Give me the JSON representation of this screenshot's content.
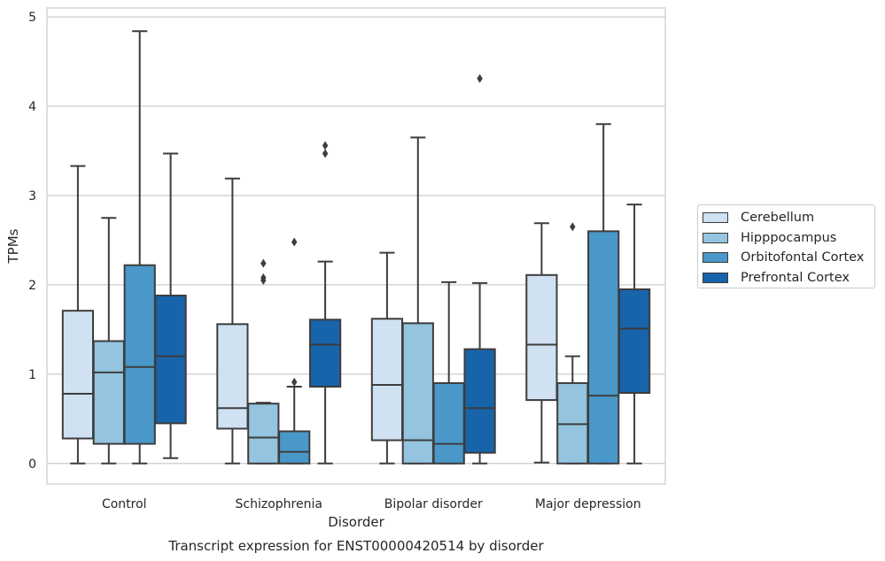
{
  "chart_data": {
    "type": "box",
    "title": "Transcript expression for ENST00000420514 by disorder",
    "xlabel": "Disorder",
    "ylabel": "TPMs",
    "ylim": [
      -0.23,
      5.1
    ],
    "yticks": [
      0,
      1,
      2,
      3,
      4,
      5
    ],
    "grid": "horizontal",
    "legend_position": "right",
    "categories": [
      "Control",
      "Schizophrenia",
      "Bipolar disorder",
      "Major depression"
    ],
    "series": [
      {
        "name": "Cerebellum",
        "color": "#d0e1f2",
        "boxes": [
          {
            "whislo": 0.0,
            "q1": 0.28,
            "median": 0.78,
            "q3": 1.71,
            "whishi": 3.33,
            "fliers": []
          },
          {
            "whislo": 0.0,
            "q1": 0.39,
            "median": 0.62,
            "q3": 1.56,
            "whishi": 3.19,
            "fliers": []
          },
          {
            "whislo": 0.0,
            "q1": 0.26,
            "median": 0.88,
            "q3": 1.62,
            "whishi": 2.36,
            "fliers": []
          },
          {
            "whislo": 0.01,
            "q1": 0.71,
            "median": 1.33,
            "q3": 2.11,
            "whishi": 2.69,
            "fliers": []
          }
        ]
      },
      {
        "name": "Hipppocampus",
        "color": "#94c4df",
        "boxes": [
          {
            "whislo": 0.0,
            "q1": 0.22,
            "median": 1.02,
            "q3": 1.37,
            "whishi": 2.75,
            "fliers": []
          },
          {
            "whislo": 0.0,
            "q1": 0.0,
            "median": 0.29,
            "q3": 0.67,
            "whishi": 0.68,
            "fliers": [
              2.24,
              2.08,
              2.05
            ]
          },
          {
            "whislo": 0.0,
            "q1": 0.0,
            "median": 0.26,
            "q3": 1.57,
            "whishi": 3.65,
            "fliers": []
          },
          {
            "whislo": 0.0,
            "q1": 0.0,
            "median": 0.44,
            "q3": 0.9,
            "whishi": 1.2,
            "fliers": [
              2.65
            ]
          }
        ]
      },
      {
        "name": "Orbitofontal Cortex",
        "color": "#4a98c9",
        "boxes": [
          {
            "whislo": 0.0,
            "q1": 0.22,
            "median": 1.08,
            "q3": 2.22,
            "whishi": 4.84,
            "fliers": []
          },
          {
            "whislo": 0.0,
            "q1": 0.0,
            "median": 0.13,
            "q3": 0.36,
            "whishi": 0.86,
            "fliers": [
              0.91,
              2.48
            ]
          },
          {
            "whislo": 0.0,
            "q1": 0.0,
            "median": 0.22,
            "q3": 0.9,
            "whishi": 2.03,
            "fliers": []
          },
          {
            "whislo": 0.0,
            "q1": 0.0,
            "median": 0.76,
            "q3": 2.6,
            "whishi": 3.8,
            "fliers": []
          }
        ]
      },
      {
        "name": "Prefrontal Cortex",
        "color": "#1764ab",
        "boxes": [
          {
            "whislo": 0.06,
            "q1": 0.45,
            "median": 1.2,
            "q3": 1.88,
            "whishi": 3.47,
            "fliers": []
          },
          {
            "whislo": 0.0,
            "q1": 0.86,
            "median": 1.33,
            "q3": 1.61,
            "whishi": 2.26,
            "fliers": [
              3.47,
              3.56
            ]
          },
          {
            "whislo": 0.0,
            "q1": 0.12,
            "median": 0.62,
            "q3": 1.28,
            "whishi": 2.02,
            "fliers": [
              4.31
            ]
          },
          {
            "whislo": 0.0,
            "q1": 0.79,
            "median": 1.51,
            "q3": 1.95,
            "whishi": 2.9,
            "fliers": []
          }
        ]
      }
    ]
  }
}
